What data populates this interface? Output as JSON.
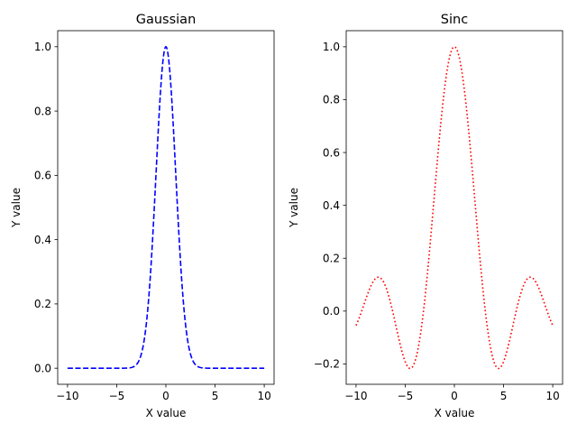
{
  "chart_data": [
    {
      "type": "line",
      "title": "Gaussian",
      "xlabel": "X value",
      "ylabel": "Y value",
      "xlim": [
        -11,
        11
      ],
      "ylim": [
        -0.05,
        1.05
      ],
      "xticks": [
        -10,
        -5,
        0,
        5,
        10
      ],
      "xtick_labels": [
        "−10",
        "−5",
        "0",
        "5",
        "10"
      ],
      "yticks": [
        0.0,
        0.2,
        0.4,
        0.6,
        0.8,
        1.0
      ],
      "ytick_labels": [
        "0.0",
        "0.2",
        "0.4",
        "0.6",
        "0.8",
        "1.0"
      ],
      "grid": false,
      "series": [
        {
          "function": "exp(-x^2/2)",
          "x_range": [
            -10,
            10
          ],
          "color": "#0000ff",
          "line_style": "dashed"
        }
      ]
    },
    {
      "type": "line",
      "title": "Sinc",
      "xlabel": "X value",
      "ylabel": "Y value",
      "xlim": [
        -11,
        11
      ],
      "ylim": [
        -0.277,
        1.061
      ],
      "xticks": [
        -10,
        -5,
        0,
        5,
        10
      ],
      "xtick_labels": [
        "−10",
        "−5",
        "0",
        "5",
        "10"
      ],
      "yticks": [
        -0.2,
        0.0,
        0.2,
        0.4,
        0.6,
        0.8,
        1.0
      ],
      "ytick_labels": [
        "−0.2",
        "0.0",
        "0.2",
        "0.4",
        "0.6",
        "0.8",
        "1.0"
      ],
      "grid": false,
      "series": [
        {
          "function": "sin(x)/x",
          "x_range": [
            -10,
            10
          ],
          "color": "#ff0000",
          "line_style": "dotted"
        }
      ]
    }
  ]
}
